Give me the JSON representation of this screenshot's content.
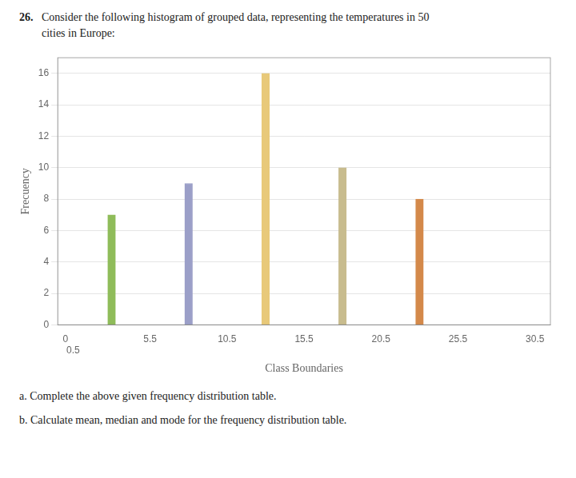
{
  "chart_data": {
    "type": "histogram",
    "bins": [
      0.5,
      5.5,
      10.5,
      15.5,
      20.5,
      25.5
    ],
    "values": [
      7,
      9,
      16,
      10,
      8
    ],
    "colors": [
      "#8fbc5a",
      "#9b9fc8",
      "#e8c97a",
      "#c8bc8e",
      "#d4894a"
    ],
    "xlabel": "Class Boundaries",
    "ylabel": "Frecuency",
    "xlim": [
      -0.5,
      31.5
    ],
    "ylim": [
      0,
      17
    ],
    "xticks": [
      0,
      0.5,
      5.5,
      10.5,
      15.5,
      20.5,
      25.5,
      30.5
    ],
    "yticks": [
      0,
      2,
      4,
      6,
      8,
      10,
      12,
      14,
      16
    ],
    "grid": "y",
    "annotations": [
      "26.",
      "Consider the following histogram of grouped data, representing the temperatures in 50",
      "cities in Europe:",
      "a.  Complete the above given frequency distribution table.",
      "b.  Calculate mean, median and mode for the frequency distribution table."
    ]
  }
}
